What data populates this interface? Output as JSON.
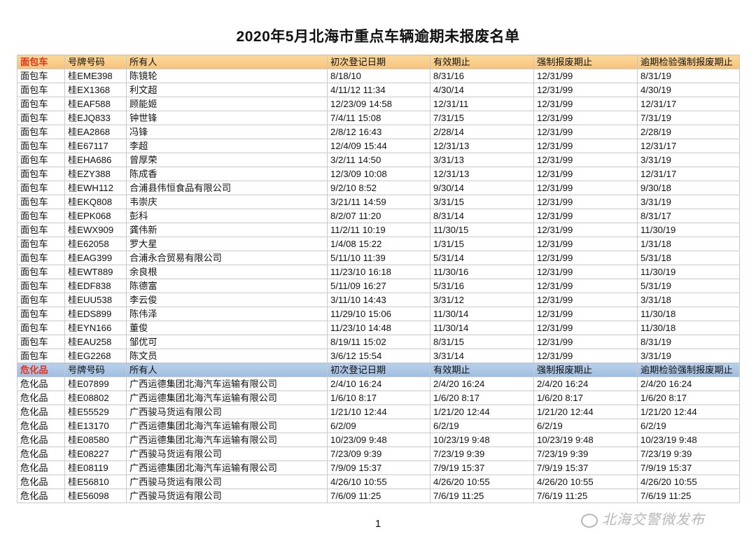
{
  "title": "2020年5月北海市重点车辆逾期未报废名单",
  "page_number": "1",
  "watermark": "北海交警微发布",
  "colors": {
    "orange_header": "#f6c27a",
    "blue_header": "#9fbde0",
    "category_label": "#e3321a"
  },
  "sections": [
    {
      "header": [
        "面包车",
        "号牌号码",
        "所有人",
        "初次登记日期",
        "有效期止",
        "强制报废期止",
        "逾期检验强制报废期止"
      ],
      "rows": [
        [
          "面包车",
          "桂EME398",
          "陈镜轮",
          "8/18/10",
          "8/31/16",
          "12/31/99",
          "8/31/19"
        ],
        [
          "面包车",
          "桂EX1368",
          "利文超",
          "4/11/12 11:34",
          "4/30/14",
          "12/31/99",
          "4/30/19"
        ],
        [
          "面包车",
          "桂EAF588",
          "顾能姬",
          "12/23/09 14:58",
          "12/31/11",
          "12/31/99",
          "12/31/17"
        ],
        [
          "面包车",
          "桂EJQ833",
          "钟世锋",
          "7/4/11 15:08",
          "7/31/15",
          "12/31/99",
          "7/31/19"
        ],
        [
          "面包车",
          "桂EA2868",
          "冯锋",
          "2/8/12 16:43",
          "2/28/14",
          "12/31/99",
          "2/28/19"
        ],
        [
          "面包车",
          "桂E67117",
          "李超",
          "12/4/09 15:44",
          "12/31/13",
          "12/31/99",
          "12/31/17"
        ],
        [
          "面包车",
          "桂EHA686",
          "曾厚荣",
          "3/2/11 14:50",
          "3/31/13",
          "12/31/99",
          "3/31/19"
        ],
        [
          "面包车",
          "桂EZY388",
          "陈成香",
          "12/3/09 10:08",
          "12/31/13",
          "12/31/99",
          "12/31/17"
        ],
        [
          "面包车",
          "桂EWH112",
          "合浦县伟恒食品有限公司",
          "9/2/10 8:52",
          "9/30/14",
          "12/31/99",
          "9/30/18"
        ],
        [
          "面包车",
          "桂EKQ808",
          "韦崇庆",
          "3/21/11 14:59",
          "3/31/15",
          "12/31/99",
          "3/31/19"
        ],
        [
          "面包车",
          "桂EPK068",
          "彭科",
          "8/2/07 11:20",
          "8/31/14",
          "12/31/99",
          "8/31/17"
        ],
        [
          "面包车",
          "桂EWX909",
          "龚伟新",
          "11/2/11 10:19",
          "11/30/15",
          "12/31/99",
          "11/30/19"
        ],
        [
          "面包车",
          "桂E62058",
          "罗大星",
          "1/4/08 15:22",
          "1/31/15",
          "12/31/99",
          "1/31/18"
        ],
        [
          "面包车",
          "桂EAG399",
          "合浦永合贸易有限公司",
          "5/11/10 11:39",
          "5/31/14",
          "12/31/99",
          "5/31/18"
        ],
        [
          "面包车",
          "桂EWT889",
          "余良根",
          "11/23/10 16:18",
          "11/30/16",
          "12/31/99",
          "11/30/19"
        ],
        [
          "面包车",
          "桂EDF838",
          "陈德富",
          "5/11/09 16:27",
          "5/31/16",
          "12/31/99",
          "5/31/19"
        ],
        [
          "面包车",
          "桂EUU538",
          "李云俊",
          "3/11/10 14:43",
          "3/31/12",
          "12/31/99",
          "3/31/18"
        ],
        [
          "面包车",
          "桂EDS899",
          "陈伟泽",
          "11/29/10 15:06",
          "11/30/14",
          "12/31/99",
          "11/30/18"
        ],
        [
          "面包车",
          "桂EYN166",
          "董俊",
          "11/23/10 14:48",
          "11/30/14",
          "12/31/99",
          "11/30/18"
        ],
        [
          "面包车",
          "桂EAU258",
          "邹优可",
          "8/19/11 15:02",
          "8/31/15",
          "12/31/99",
          "8/31/19"
        ],
        [
          "面包车",
          "桂EG2268",
          "陈文员",
          "3/6/12 15:54",
          "3/31/14",
          "12/31/99",
          "3/31/19"
        ]
      ]
    },
    {
      "header": [
        "危化品",
        "号牌号码",
        "所有人",
        "初次登记日期",
        "有效期止",
        "强制报废期止",
        "逾期检验强制报废期止"
      ],
      "rows": [
        [
          "危化品",
          "桂E07899",
          "广西运德集团北海汽车运输有限公司",
          "2/4/10 16:24",
          "2/4/20 16:24",
          "2/4/20 16:24",
          "2/4/20 16:24"
        ],
        [
          "危化品",
          "桂E08802",
          "广西运德集团北海汽车运输有限公司",
          "1/6/10 8:17",
          "1/6/20 8:17",
          "1/6/20 8:17",
          "1/6/20 8:17"
        ],
        [
          "危化品",
          "桂E55529",
          "广西骏马货运有限公司",
          "1/21/10 12:44",
          "1/21/20 12:44",
          "1/21/20 12:44",
          "1/21/20 12:44"
        ],
        [
          "危化品",
          "桂E13170",
          "广西运德集团北海汽车运输有限公司",
          "6/2/09",
          "6/2/19",
          "6/2/19",
          "6/2/19"
        ],
        [
          "危化品",
          "桂E08580",
          "广西运德集团北海汽车运输有限公司",
          "10/23/09 9:48",
          "10/23/19 9:48",
          "10/23/19 9:48",
          "10/23/19 9:48"
        ],
        [
          "危化品",
          "桂E08227",
          "广西骏马货运有限公司",
          "7/23/09 9:39",
          "7/23/19 9:39",
          "7/23/19 9:39",
          "7/23/19 9:39"
        ],
        [
          "危化品",
          "桂E08119",
          "广西运德集团北海汽车运输有限公司",
          "7/9/09 15:37",
          "7/9/19 15:37",
          "7/9/19 15:37",
          "7/9/19 15:37"
        ],
        [
          "危化品",
          "桂E56810",
          "广西骏马货运有限公司",
          "4/26/10 10:55",
          "4/26/20 10:55",
          "4/26/20 10:55",
          "4/26/20 10:55"
        ],
        [
          "危化品",
          "桂E56098",
          "广西骏马货运有限公司",
          "7/6/09 11:25",
          "7/6/19 11:25",
          "7/6/19 11:25",
          "7/6/19 11:25"
        ]
      ]
    }
  ]
}
